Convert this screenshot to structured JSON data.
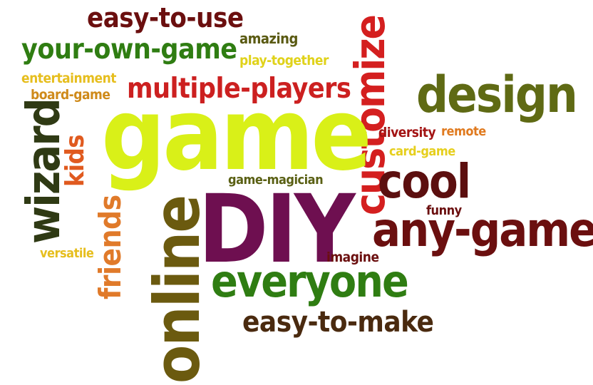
{
  "words": [
    {
      "id": "easy-to-use",
      "text": "easy-to-use",
      "color": "#6b0f0f"
    },
    {
      "id": "amazing",
      "text": "amazing",
      "color": "#5a5a12"
    },
    {
      "id": "your-own-game",
      "text": "your-own-game",
      "color": "#2f7d12"
    },
    {
      "id": "play-together",
      "text": "play-together",
      "color": "#e0d21a"
    },
    {
      "id": "entertainment",
      "text": "entertainment",
      "color": "#e6be1e"
    },
    {
      "id": "board-game",
      "text": "board-game",
      "color": "#cf8a1a"
    },
    {
      "id": "multiple-players",
      "text": "multiple-players",
      "color": "#cc2020"
    },
    {
      "id": "customize",
      "text": "customize",
      "color": "#d41f1f"
    },
    {
      "id": "design",
      "text": "design",
      "color": "#5f6a14"
    },
    {
      "id": "wizard",
      "text": "wizard",
      "color": "#2f3a14"
    },
    {
      "id": "kids",
      "text": "kids",
      "color": "#e05a1f"
    },
    {
      "id": "game",
      "text": "game",
      "color": "#d9f018"
    },
    {
      "id": "diversity",
      "text": "diversity",
      "color": "#a31414"
    },
    {
      "id": "remote",
      "text": "remote",
      "color": "#e07a1f"
    },
    {
      "id": "card-game",
      "text": "card-game",
      "color": "#e6cf1e"
    },
    {
      "id": "cool",
      "text": "cool",
      "color": "#5c0f0f"
    },
    {
      "id": "game-magician",
      "text": "game-magician",
      "color": "#5a6014"
    },
    {
      "id": "funny",
      "text": "funny",
      "color": "#6b0f0f"
    },
    {
      "id": "online",
      "text": "online",
      "color": "#6b5a0f"
    },
    {
      "id": "friends",
      "text": "friends",
      "color": "#e07a2a"
    },
    {
      "id": "DIY",
      "text": "DIY",
      "color": "#6e0f50"
    },
    {
      "id": "any-game",
      "text": "any-game",
      "color": "#6b0f0f"
    },
    {
      "id": "versatile",
      "text": "versatile",
      "color": "#e6be1e"
    },
    {
      "id": "imagine",
      "text": "imagine",
      "color": "#6b0f0f"
    },
    {
      "id": "everyone",
      "text": "everyone",
      "color": "#2f7d12"
    },
    {
      "id": "easy-to-make",
      "text": "easy-to-make",
      "color": "#4a2a0f"
    }
  ]
}
